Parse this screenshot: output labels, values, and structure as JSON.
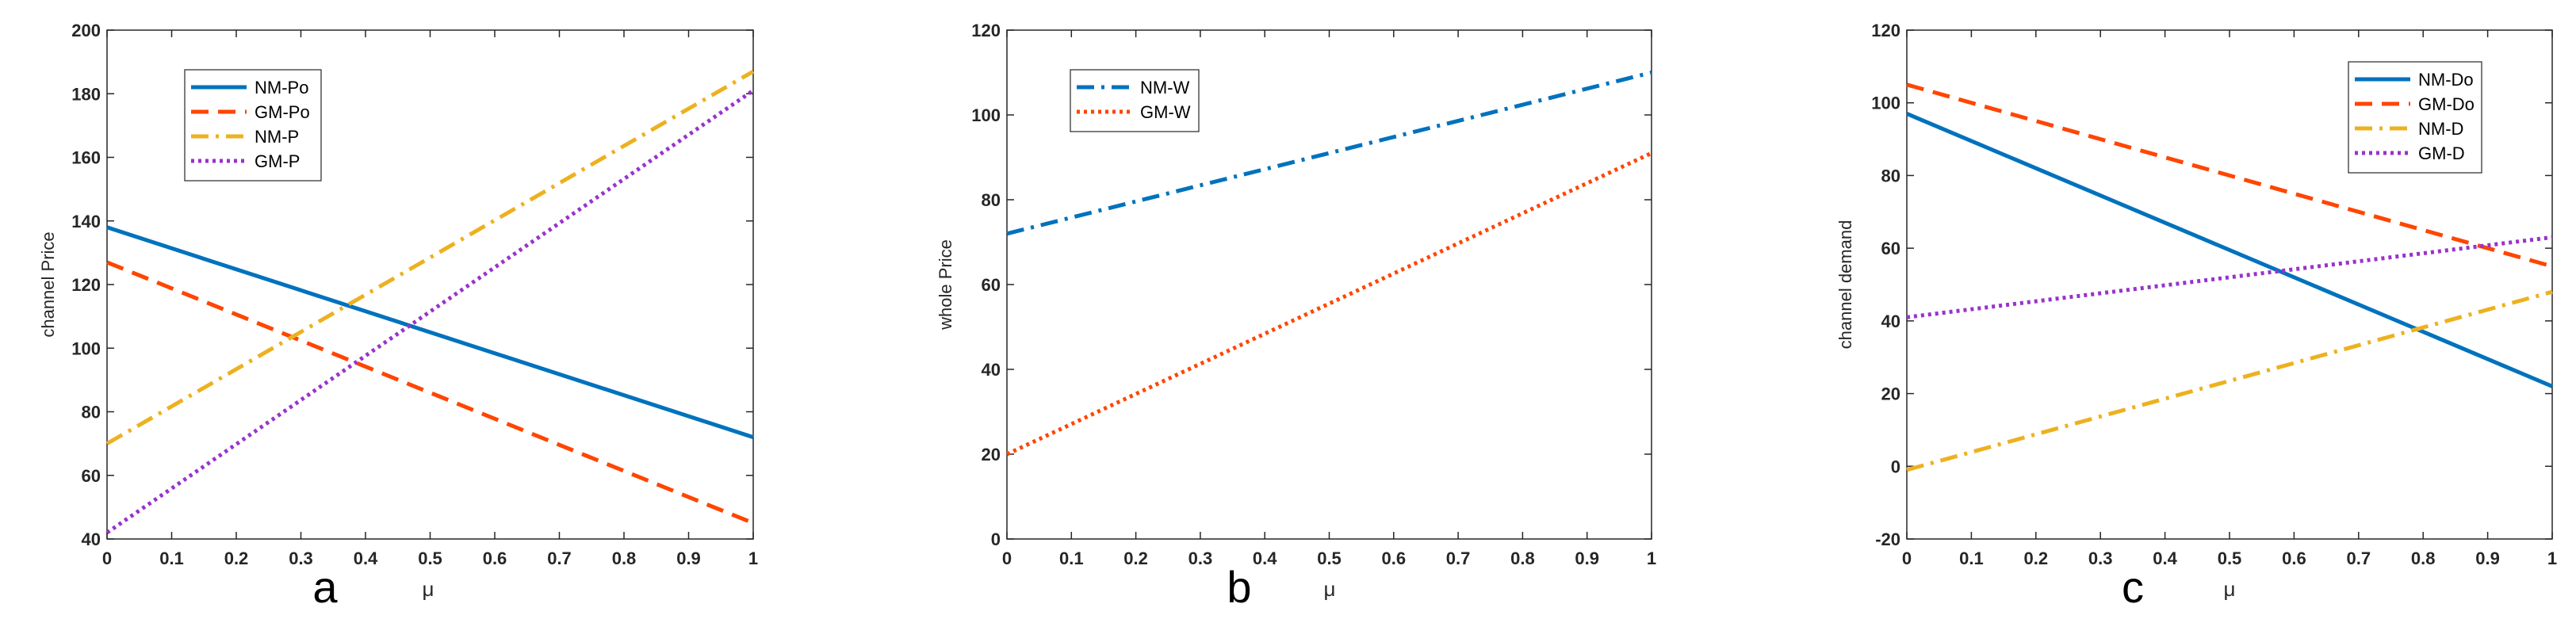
{
  "chart_data": [
    {
      "type": "line",
      "panel_label": "a",
      "xlabel": "μ",
      "ylabel": "channel Price",
      "xlim": [
        0,
        1
      ],
      "ylim": [
        40,
        200
      ],
      "xticks": [
        0,
        0.1,
        0.2,
        0.3,
        0.4,
        0.5,
        0.6,
        0.7,
        0.8,
        0.9,
        1
      ],
      "xtick_labels": [
        "0",
        "0.1",
        "0.2",
        "0.3",
        "0.4",
        "0.5",
        "0.6",
        "0.7",
        "0.8",
        "0.9",
        "1"
      ],
      "yticks": [
        40,
        60,
        80,
        100,
        120,
        140,
        160,
        180,
        200
      ],
      "ytick_labels": [
        "40",
        "60",
        "80",
        "100",
        "120",
        "140",
        "160",
        "180",
        "200"
      ],
      "grid": false,
      "legend_position": "top-left",
      "series": [
        {
          "name": "NM-Po",
          "x": [
            0,
            1
          ],
          "values": [
            138,
            72
          ],
          "color": "#0072BD",
          "style": "solid"
        },
        {
          "name": "GM-Po",
          "x": [
            0,
            1
          ],
          "values": [
            127,
            45
          ],
          "color": "#FF4500",
          "style": "dashed"
        },
        {
          "name": "NM-P",
          "x": [
            0,
            1
          ],
          "values": [
            70,
            187
          ],
          "color": "#EDB120",
          "style": "dashdot"
        },
        {
          "name": "GM-P",
          "x": [
            0,
            1
          ],
          "values": [
            42,
            181
          ],
          "color": "#9932CC",
          "style": "dotted"
        }
      ]
    },
    {
      "type": "line",
      "panel_label": "b",
      "xlabel": "μ",
      "ylabel": "whole Price",
      "xlim": [
        0,
        1
      ],
      "ylim": [
        0,
        120
      ],
      "xticks": [
        0,
        0.1,
        0.2,
        0.3,
        0.4,
        0.5,
        0.6,
        0.7,
        0.8,
        0.9,
        1
      ],
      "xtick_labels": [
        "0",
        "0.1",
        "0.2",
        "0.3",
        "0.4",
        "0.5",
        "0.6",
        "0.7",
        "0.8",
        "0.9",
        "1"
      ],
      "yticks": [
        0,
        20,
        40,
        60,
        80,
        100,
        120
      ],
      "ytick_labels": [
        "0",
        "20",
        "40",
        "60",
        "80",
        "100",
        "120"
      ],
      "grid": false,
      "legend_position": "top-left",
      "series": [
        {
          "name": "NM-W",
          "x": [
            0,
            1
          ],
          "values": [
            72,
            110
          ],
          "color": "#0072BD",
          "style": "dashdot"
        },
        {
          "name": "GM-W",
          "x": [
            0,
            1
          ],
          "values": [
            20,
            91
          ],
          "color": "#FF4500",
          "style": "dotted"
        }
      ]
    },
    {
      "type": "line",
      "panel_label": "c",
      "xlabel": "μ",
      "ylabel": "channel demand",
      "xlim": [
        0,
        1
      ],
      "ylim": [
        -20,
        120
      ],
      "xticks": [
        0,
        0.1,
        0.2,
        0.3,
        0.4,
        0.5,
        0.6,
        0.7,
        0.8,
        0.9,
        1
      ],
      "xtick_labels": [
        "0",
        "0.1",
        "0.2",
        "0.3",
        "0.4",
        "0.5",
        "0.6",
        "0.7",
        "0.8",
        "0.9",
        "1"
      ],
      "yticks": [
        -20,
        0,
        20,
        40,
        60,
        80,
        100,
        120
      ],
      "ytick_labels": [
        "-20",
        "0",
        "20",
        "40",
        "60",
        "80",
        "100",
        "120"
      ],
      "grid": false,
      "legend_position": "top-right",
      "series": [
        {
          "name": "NM-Do",
          "x": [
            0,
            1
          ],
          "values": [
            97,
            22
          ],
          "color": "#0072BD",
          "style": "solid"
        },
        {
          "name": "GM-Do",
          "x": [
            0,
            1
          ],
          "values": [
            105,
            55
          ],
          "color": "#FF4500",
          "style": "dashed"
        },
        {
          "name": "NM-D",
          "x": [
            0,
            1
          ],
          "values": [
            -1,
            48
          ],
          "color": "#EDB120",
          "style": "dashdot"
        },
        {
          "name": "GM-D",
          "x": [
            0,
            1
          ],
          "values": [
            41,
            63
          ],
          "color": "#9932CC",
          "style": "dotted"
        }
      ]
    }
  ]
}
